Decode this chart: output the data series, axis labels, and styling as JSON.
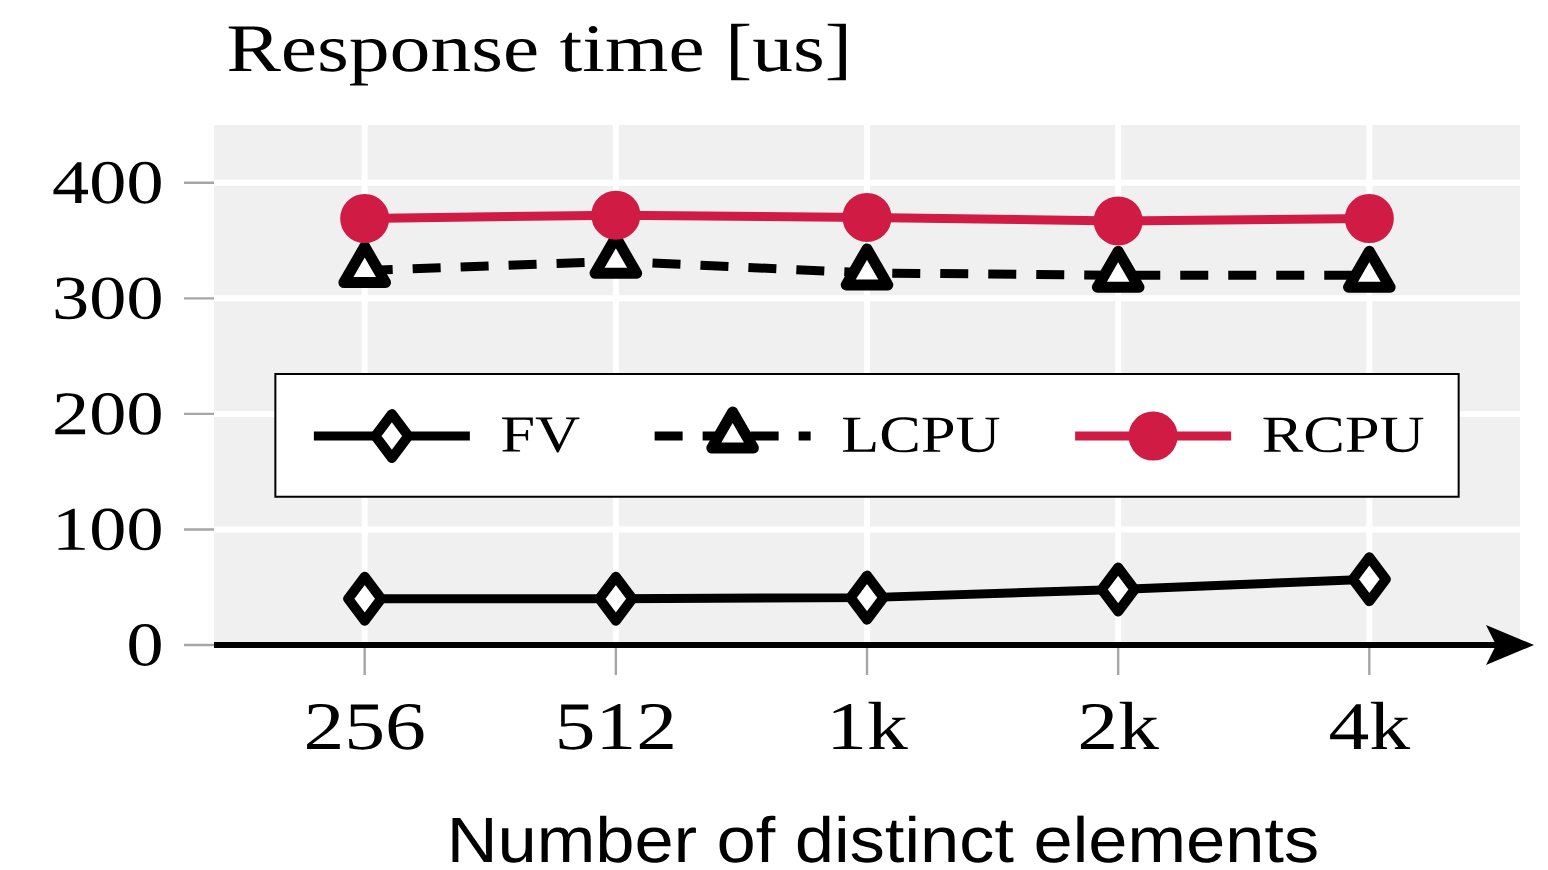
{
  "chart_data": {
    "type": "line",
    "title": "Response time [us]",
    "xlabel": "Number of distinct elements",
    "categories": [
      "256",
      "512",
      "1k",
      "2k",
      "4k"
    ],
    "series": [
      {
        "name": "FV",
        "color": "#000000",
        "marker": "diamond",
        "line_style": "solid",
        "values": [
          40,
          40,
          41,
          48,
          57
        ]
      },
      {
        "name": "LCPU",
        "color": "#000000",
        "marker": "triangle",
        "line_style": "dashed",
        "values": [
          324,
          332,
          322,
          320,
          320
        ]
      },
      {
        "name": "RCPU",
        "color": "#d01b44",
        "marker": "circle",
        "line_style": "solid",
        "values": [
          369,
          372,
          370,
          367,
          369
        ]
      }
    ],
    "ylim": [
      0,
      450
    ],
    "yticks": [
      0,
      100,
      200,
      300,
      400
    ],
    "grid": true,
    "legend": "center"
  }
}
